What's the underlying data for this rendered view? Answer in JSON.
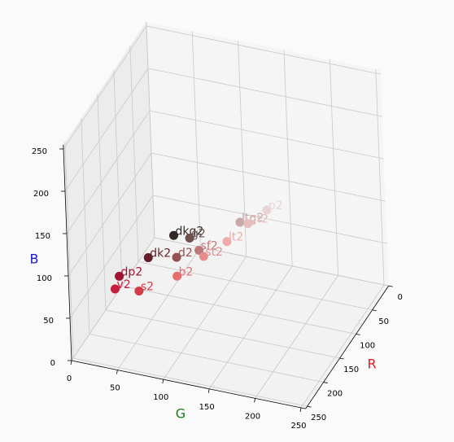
{
  "chart_data": {
    "type": "scatter3d",
    "xlabel": "R",
    "ylabel": "G",
    "zlabel": "B",
    "xlabel_color": "#e31a1c",
    "ylabel_color": "#1a7a1a",
    "zlabel_color": "#1a1acc",
    "xlim": [
      0,
      255
    ],
    "ylim": [
      0,
      255
    ],
    "zlim": [
      0,
      255
    ],
    "xticks": [
      0,
      50,
      100,
      150,
      200,
      250
    ],
    "yticks": [
      0,
      50,
      100,
      150,
      200,
      250
    ],
    "zticks": [
      0,
      50,
      100,
      150,
      200,
      250
    ],
    "grid": true,
    "points": [
      {
        "label": "dkg2",
        "r": 50,
        "g": 40,
        "b": 40,
        "color": "#322828"
      },
      {
        "label": "g2",
        "r": 110,
        "g": 80,
        "b": 80,
        "color": "#6e5050"
      },
      {
        "label": "dk2",
        "r": 100,
        "g": 30,
        "b": 40,
        "color": "#641e28"
      },
      {
        "label": "d2",
        "r": 150,
        "g": 80,
        "b": 80,
        "color": "#965050"
      },
      {
        "label": "sf2",
        "r": 190,
        "g": 120,
        "b": 120,
        "color": "#be7878"
      },
      {
        "label": "st2",
        "r": 230,
        "g": 140,
        "b": 140,
        "color": "#e68c8c"
      },
      {
        "label": "lt2",
        "r": 240,
        "g": 170,
        "b": 170,
        "color": "#f0aaaa"
      },
      {
        "label": "ltg2",
        "r": 200,
        "g": 170,
        "b": 170,
        "color": "#c8aaaa"
      },
      {
        "label": "gt2",
        "r": 230,
        "g": 190,
        "b": 190,
        "color": "#e6bebe"
      },
      {
        "label": "p2",
        "r": 232,
        "g": 212,
        "b": 212,
        "color": "#e8d4d4"
      },
      {
        "label": "dp2",
        "r": 160,
        "g": 20,
        "b": 50,
        "color": "#a01432"
      },
      {
        "label": "v2",
        "r": 200,
        "g": 30,
        "b": 60,
        "color": "#c81e3c"
      },
      {
        "label": "s2",
        "r": 210,
        "g": 60,
        "b": 70,
        "color": "#d23c46"
      },
      {
        "label": "b2",
        "r": 230,
        "g": 110,
        "b": 110,
        "color": "#e66e6e"
      }
    ]
  }
}
